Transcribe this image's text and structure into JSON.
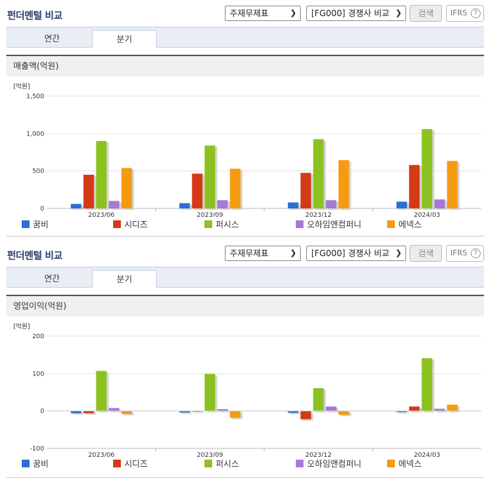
{
  "header": {
    "title": "펀더멘털 비교",
    "select_statement": "주재무제표",
    "select_compare": "[FG000] 경쟁사 비교",
    "search_label": "검색",
    "ifrs_label": "IFRS",
    "help_icon": "?"
  },
  "tabs": [
    "연간",
    "분기"
  ],
  "active_tab": "분기",
  "legend": [
    {
      "name": "꿈비",
      "color": "#2a6fd6"
    },
    {
      "name": "시디즈",
      "color": "#d43a16"
    },
    {
      "name": "퍼시스",
      "color": "#8cc21f"
    },
    {
      "name": "오하임앤컴퍼니",
      "color": "#a57ad8"
    },
    {
      "name": "에넥스",
      "color": "#f59b11"
    }
  ],
  "chart_data": [
    {
      "type": "bar",
      "title": "매출액(억원)",
      "unit_label": "[억원]",
      "categories": [
        "2023/06",
        "2023/09",
        "2023/12",
        "2024/03"
      ],
      "yticks": [
        0,
        500,
        1000,
        1500
      ],
      "ytick_labels": [
        "0",
        "500",
        "1,000",
        "1,500"
      ],
      "ylim": [
        0,
        1500
      ],
      "series": [
        {
          "name": "꿈비",
          "values": [
            60,
            70,
            80,
            90
          ]
        },
        {
          "name": "시디즈",
          "values": [
            450,
            465,
            475,
            580
          ]
        },
        {
          "name": "퍼시스",
          "values": [
            900,
            840,
            925,
            1060
          ]
        },
        {
          "name": "오하임앤컴퍼니",
          "values": [
            100,
            110,
            110,
            120
          ]
        },
        {
          "name": "에넥스",
          "values": [
            540,
            530,
            645,
            635
          ]
        }
      ]
    },
    {
      "type": "bar",
      "title": "영업이익(억원)",
      "unit_label": "[억원]",
      "categories": [
        "2023/06",
        "2023/09",
        "2023/12",
        "2024/03"
      ],
      "yticks": [
        -100,
        0,
        100,
        200
      ],
      "ytick_labels": [
        "-100",
        "0",
        "100",
        "200"
      ],
      "ylim": [
        -100,
        200
      ],
      "series": [
        {
          "name": "꿈비",
          "values": [
            -6,
            -4,
            -5,
            -3
          ]
        },
        {
          "name": "시디즈",
          "values": [
            -6,
            0,
            -22,
            12
          ]
        },
        {
          "name": "퍼시스",
          "values": [
            107,
            99,
            61,
            141
          ]
        },
        {
          "name": "오하임앤컴퍼니",
          "values": [
            8,
            5,
            12,
            6
          ]
        },
        {
          "name": "에넥스",
          "values": [
            -8,
            -18,
            -10,
            17
          ]
        }
      ]
    }
  ]
}
